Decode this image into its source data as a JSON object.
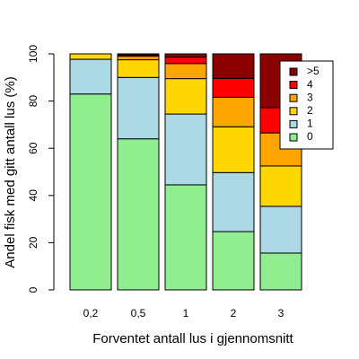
{
  "chart_data": {
    "type": "stacked_bar",
    "xlabel": "Forventet antall lus i gjennomsnitt",
    "ylabel": "Andel fisk med gitt antall lus (%)",
    "categories": [
      "0,2",
      "0,5",
      "1",
      "2",
      "3"
    ],
    "series": [
      {
        "name": "0",
        "color": "#90ee90",
        "values": [
          83,
          64,
          44.5,
          24.7,
          15.6
        ]
      },
      {
        "name": "1",
        "color": "#add8e6",
        "values": [
          14.7,
          26,
          30,
          25,
          19.8
        ]
      },
      {
        "name": "2",
        "color": "#ffd700",
        "values": [
          2.3,
          7.5,
          15,
          19.4,
          17.1
        ]
      },
      {
        "name": "3",
        "color": "#ffa500",
        "values": [
          0,
          1.5,
          6.4,
          12.5,
          14
        ]
      },
      {
        "name": "4",
        "color": "#ff0000",
        "values": [
          0,
          0.5,
          2.7,
          8,
          10.7
        ]
      },
      {
        "name": ">5",
        "color": "#8b0000",
        "values": [
          0,
          0.5,
          1.4,
          10.4,
          22.8
        ]
      }
    ],
    "ylim": [
      0,
      100
    ],
    "yticks": [
      0,
      20,
      40,
      60,
      80,
      100
    ],
    "legend": "top-right"
  }
}
